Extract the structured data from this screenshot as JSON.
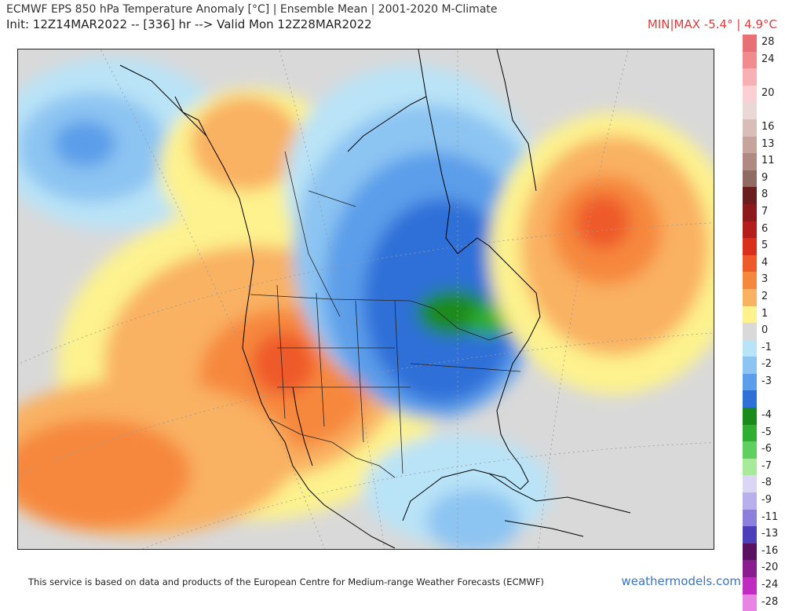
{
  "header": {
    "title": "ECMWF EPS 850 hPa Temperature Anomaly [°C] | Ensemble Mean | 2001-2020 M-Climate",
    "init_line": "Init: 12Z14MAR2022 -- [336] hr --> Valid Mon 12Z28MAR2022",
    "minmax": "MIN|MAX -5.4° | 4.9°C"
  },
  "legend": {
    "entries": [
      {
        "label": "28",
        "color": "#e86f73"
      },
      {
        "label": "24",
        "color": "#f08c90"
      },
      {
        "label": "",
        "color": "#f6b1b4"
      },
      {
        "label": "20",
        "color": "#fbd0d3"
      },
      {
        "label": "",
        "color": "#ead8d6"
      },
      {
        "label": "16",
        "color": "#d9bdb8"
      },
      {
        "label": "13",
        "color": "#c6a39c"
      },
      {
        "label": "11",
        "color": "#b08a82"
      },
      {
        "label": "9",
        "color": "#8f6b63"
      },
      {
        "label": "8",
        "color": "#6b1e1e"
      },
      {
        "label": "7",
        "color": "#8c1a1a"
      },
      {
        "label": "6",
        "color": "#b51c1c"
      },
      {
        "label": "5",
        "color": "#d9301e"
      },
      {
        "label": "4",
        "color": "#ef5a2a"
      },
      {
        "label": "3",
        "color": "#f6883e"
      },
      {
        "label": "2",
        "color": "#f9b162"
      },
      {
        "label": "1",
        "color": "#fdf28e"
      },
      {
        "label": "0",
        "color": "#d9d9d9"
      },
      {
        "label": "-1",
        "color": "#b9e3f7"
      },
      {
        "label": "-2",
        "color": "#8cc4f2"
      },
      {
        "label": "-3",
        "color": "#5c9eea"
      },
      {
        "label": "",
        "color": "#2f6fd8"
      },
      {
        "label": "-4",
        "color": "#1a8a1a"
      },
      {
        "label": "-5",
        "color": "#2fae2f"
      },
      {
        "label": "-6",
        "color": "#5fcf5f"
      },
      {
        "label": "-7",
        "color": "#a7eb9a"
      },
      {
        "label": "-8",
        "color": "#dcd6f5"
      },
      {
        "label": "-9",
        "color": "#b8b0ec"
      },
      {
        "label": "-11",
        "color": "#8b80db"
      },
      {
        "label": "-13",
        "color": "#4d3fb9"
      },
      {
        "label": "-16",
        "color": "#5a1260"
      },
      {
        "label": "-20",
        "color": "#8b1c8f"
      },
      {
        "label": "-24",
        "color": "#c02cbf"
      },
      {
        "label": "-28",
        "color": "#e884e4"
      }
    ]
  },
  "footer": {
    "disclaimer": "This service is based on data and products of the European Centre for Medium-range Weather Forecasts (ECMWF)",
    "credit": "weathermodels.com"
  }
}
